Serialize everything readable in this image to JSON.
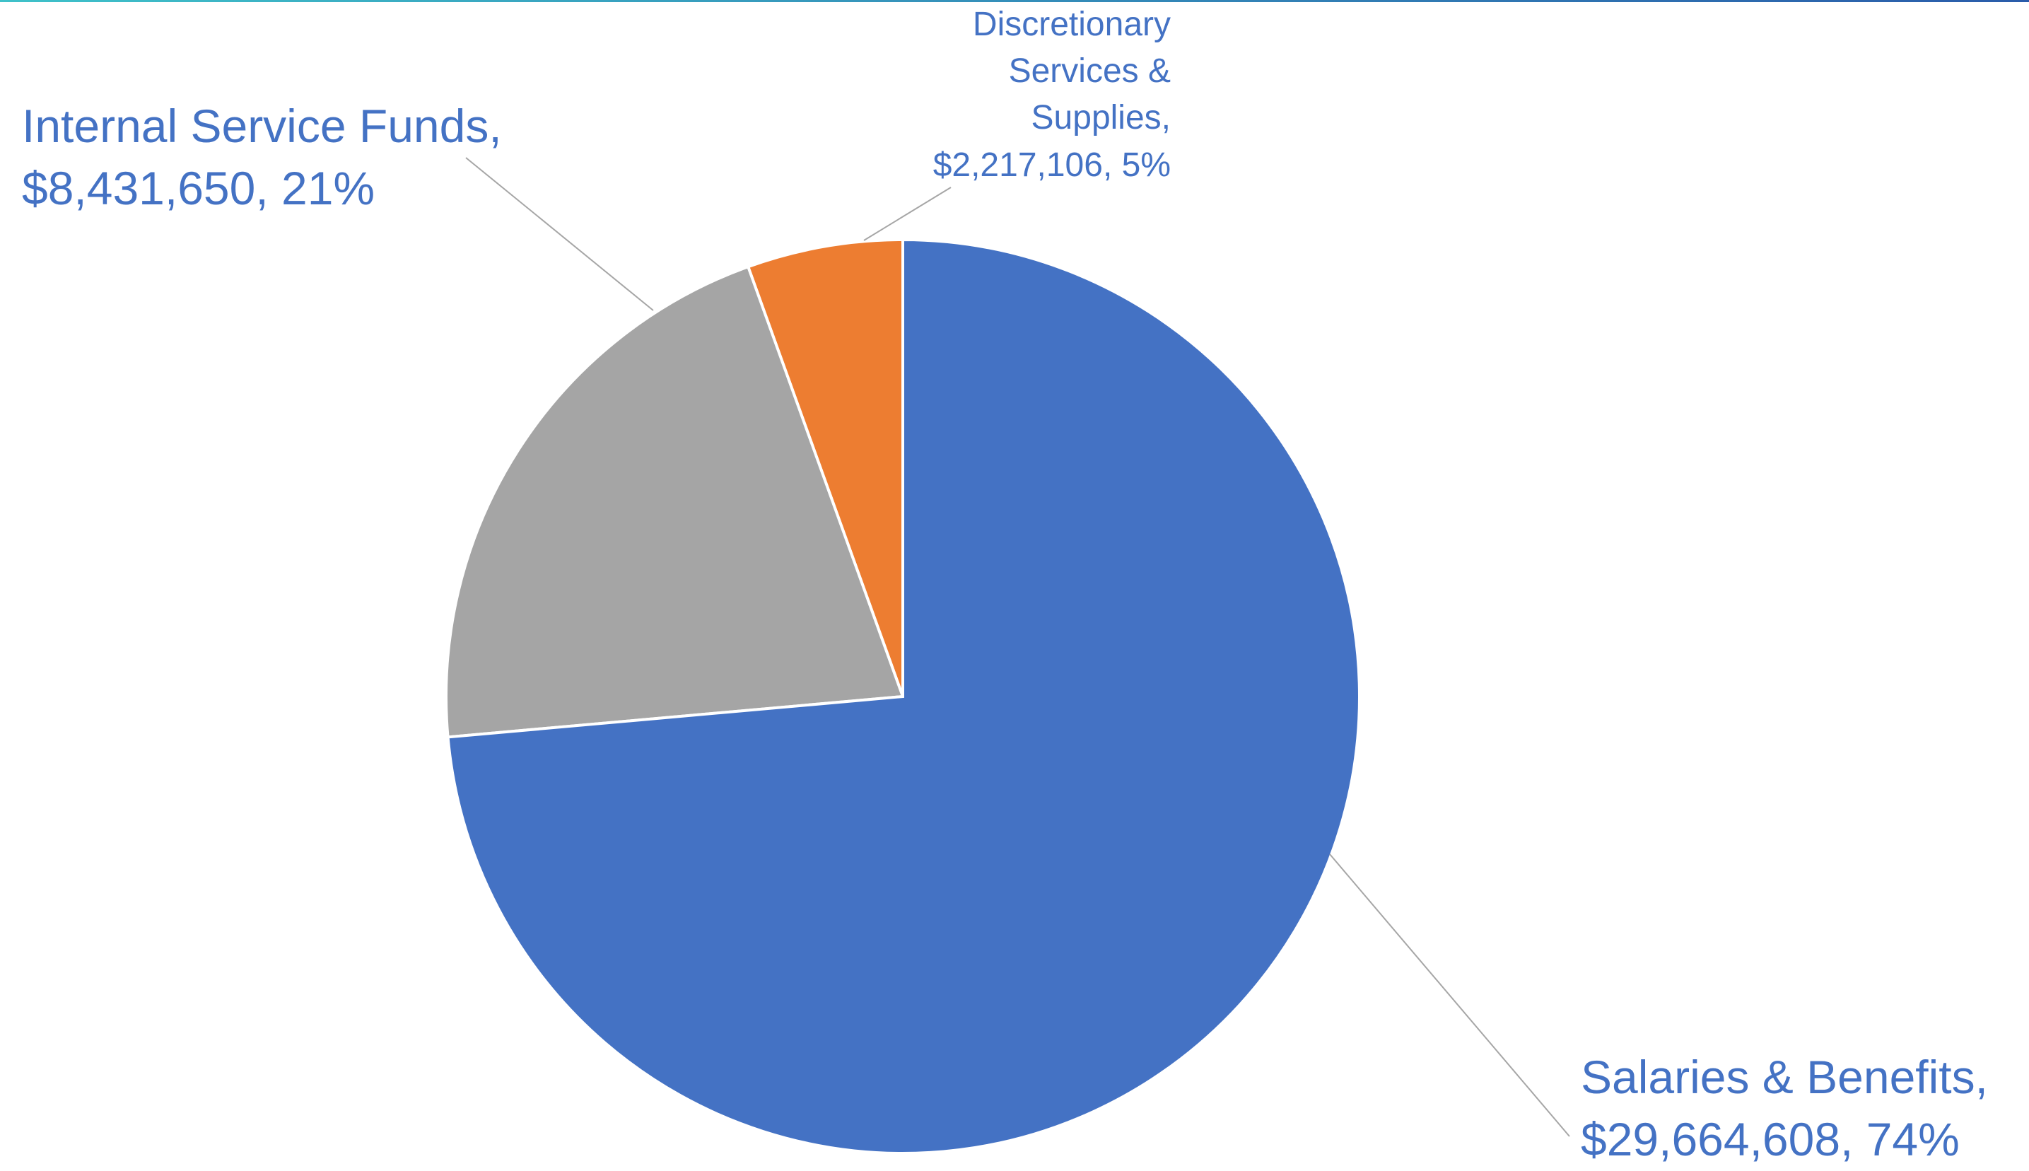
{
  "chart_data": {
    "type": "pie",
    "categories": [
      "Salaries & Benefits,",
      "Internal Service Funds,",
      "Discretionary Services & Supplies,"
    ],
    "values": [
      29664608,
      8431650,
      2217106
    ],
    "value_labels": [
      "$29,664,608,",
      "$8,431,650,",
      "$2,217,106,"
    ],
    "percentages": [
      74,
      21,
      5
    ],
    "percentage_labels": [
      "74%",
      "21%",
      "5%"
    ],
    "colors": [
      "#4472c4",
      "#a5a5a5",
      "#ed7d31"
    ],
    "label_color": "#4472c4"
  }
}
